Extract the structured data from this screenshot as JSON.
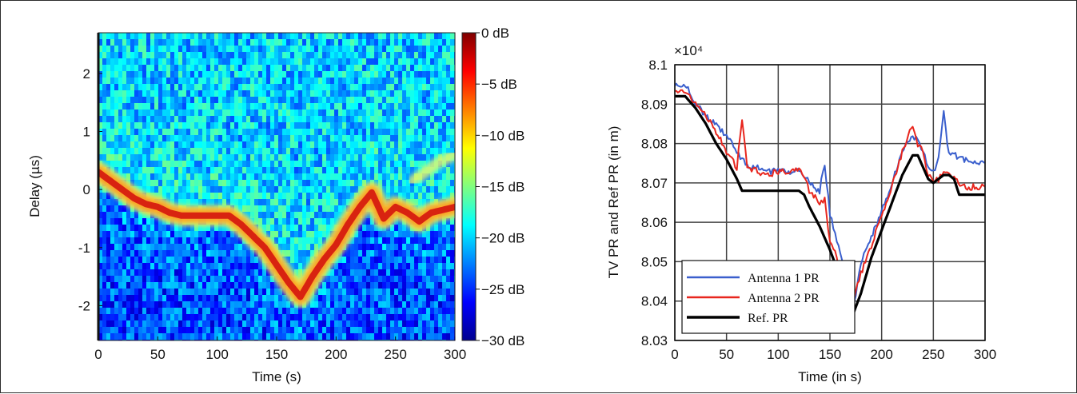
{
  "chart_data": [
    {
      "type": "heatmap",
      "xlabel": "Time (s)",
      "ylabel": "Delay (µs)",
      "xlim": [
        0,
        300
      ],
      "ylim": [
        -2.6,
        2.7
      ],
      "x_ticks": [
        "0",
        "50",
        "100",
        "150",
        "200",
        "250",
        "300"
      ],
      "x_tick_values": [
        0,
        50,
        100,
        150,
        200,
        250,
        300
      ],
      "y_ticks": [
        "2",
        "1",
        "0",
        "-1",
        "-2"
      ],
      "y_tick_values": [
        2,
        1,
        0,
        -1,
        -2
      ],
      "colorbar": {
        "range_db": [
          -30,
          0
        ],
        "ticks": [
          "0 dB",
          "−5 dB",
          "−10 dB",
          "−15 dB",
          "−20 dB",
          "−25 dB",
          "−30 dB"
        ],
        "tick_values": [
          0,
          -5,
          -10,
          -15,
          -20,
          -25,
          -30
        ],
        "colormap": "jet"
      },
      "ridge": {
        "time_s": [
          0,
          10,
          20,
          30,
          40,
          50,
          60,
          70,
          80,
          90,
          100,
          110,
          120,
          130,
          140,
          150,
          160,
          170,
          180,
          190,
          200,
          210,
          220,
          230,
          240,
          250,
          260,
          270,
          280,
          290,
          300
        ],
        "delay_us": [
          0.3,
          0.15,
          0.0,
          -0.15,
          -0.25,
          -0.3,
          -0.4,
          -0.45,
          -0.45,
          -0.45,
          -0.45,
          -0.45,
          -0.6,
          -0.8,
          -1.0,
          -1.3,
          -1.6,
          -1.85,
          -1.5,
          -1.2,
          -0.95,
          -0.6,
          -0.3,
          -0.05,
          -0.5,
          -0.3,
          -0.4,
          -0.55,
          -0.4,
          -0.35,
          -0.3
        ]
      },
      "secondary_ridge": {
        "time_s": [
          265,
          275,
          285,
          295,
          300
        ],
        "delay_us": [
          0.15,
          0.3,
          0.45,
          0.55,
          0.6
        ]
      }
    },
    {
      "type": "line",
      "xlabel": "Time (in s)",
      "ylabel": "TV PR and Ref PR (in m)",
      "xlim": [
        0,
        300
      ],
      "ylim": [
        8.03,
        8.1
      ],
      "scale_label": "×10⁴",
      "x_ticks": [
        "0",
        "50",
        "100",
        "150",
        "200",
        "250",
        "300"
      ],
      "y_ticks": [
        "8.1",
        "8.09",
        "8.08",
        "8.07",
        "8.06",
        "8.05",
        "8.04",
        "8.03"
      ],
      "grid": true,
      "legend_position": "bottom-left",
      "series": [
        {
          "name": "Antenna 1 PR",
          "color": "#3a5fcd",
          "x": [
            0,
            10,
            20,
            30,
            40,
            50,
            55,
            60,
            65,
            70,
            80,
            90,
            100,
            110,
            120,
            125,
            130,
            140,
            145,
            150,
            155,
            160,
            165,
            170,
            175,
            180,
            190,
            200,
            210,
            220,
            230,
            235,
            240,
            245,
            250,
            255,
            260,
            262,
            265,
            270,
            280,
            290,
            300
          ],
          "y": [
            8.095,
            8.095,
            8.09,
            8.087,
            8.085,
            8.082,
            8.08,
            8.078,
            8.076,
            8.074,
            8.074,
            8.073,
            8.073,
            8.073,
            8.073,
            8.072,
            8.07,
            8.068,
            8.075,
            8.062,
            8.057,
            8.053,
            8.047,
            8.037,
            8.042,
            8.05,
            8.056,
            8.063,
            8.07,
            8.078,
            8.082,
            8.081,
            8.078,
            8.074,
            8.073,
            8.076,
            8.088,
            8.083,
            8.077,
            8.077,
            8.076,
            8.075,
            8.075
          ]
        },
        {
          "name": "Antenna 2 PR",
          "color": "#e8261e",
          "x": [
            0,
            10,
            20,
            30,
            40,
            50,
            55,
            60,
            65,
            70,
            80,
            90,
            100,
            110,
            120,
            125,
            130,
            140,
            145,
            150,
            155,
            160,
            165,
            170,
            175,
            180,
            190,
            200,
            210,
            220,
            230,
            235,
            240,
            245,
            250,
            255,
            260,
            265,
            270,
            280,
            290,
            300
          ],
          "y": [
            8.093,
            8.093,
            8.09,
            8.087,
            8.083,
            8.078,
            8.076,
            8.074,
            8.086,
            8.074,
            8.073,
            8.072,
            8.073,
            8.073,
            8.073,
            8.072,
            8.068,
            8.065,
            8.066,
            8.055,
            8.052,
            8.047,
            8.045,
            8.037,
            8.043,
            8.047,
            8.054,
            8.062,
            8.069,
            8.078,
            8.085,
            8.08,
            8.078,
            8.072,
            8.071,
            8.071,
            8.073,
            8.072,
            8.071,
            8.069,
            8.069,
            8.069
          ]
        },
        {
          "name": "Ref. PR",
          "color": "#000000",
          "x": [
            0,
            10,
            20,
            30,
            40,
            50,
            60,
            65,
            70,
            80,
            90,
            100,
            110,
            120,
            125,
            130,
            140,
            150,
            160,
            170,
            180,
            190,
            200,
            210,
            220,
            230,
            235,
            240,
            245,
            250,
            255,
            260,
            265,
            270,
            275,
            280,
            290,
            300
          ],
          "y": [
            8.092,
            8.092,
            8.089,
            8.085,
            8.08,
            8.076,
            8.071,
            8.068,
            8.068,
            8.068,
            8.068,
            8.068,
            8.068,
            8.068,
            8.067,
            8.064,
            8.059,
            8.053,
            8.046,
            8.035,
            8.042,
            8.051,
            8.058,
            8.065,
            8.072,
            8.077,
            8.077,
            8.074,
            8.071,
            8.07,
            8.071,
            8.072,
            8.072,
            8.071,
            8.067,
            8.067,
            8.067,
            8.067
          ]
        }
      ]
    }
  ]
}
